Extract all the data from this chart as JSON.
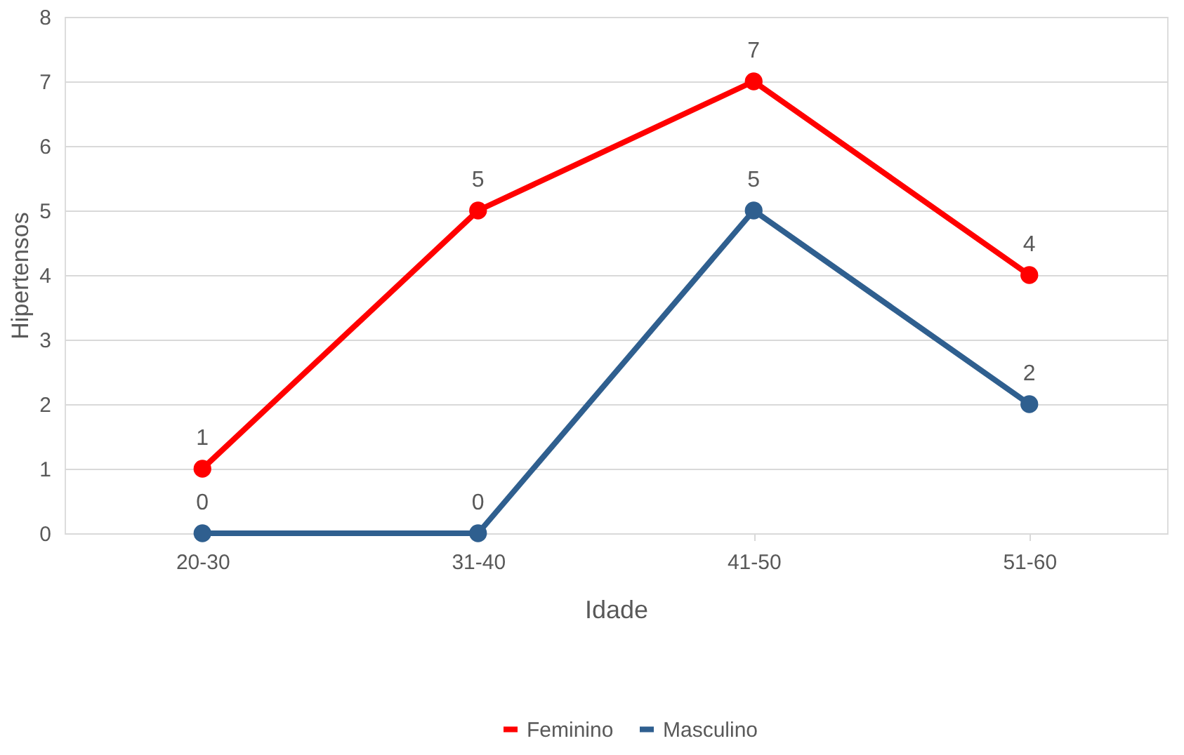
{
  "chart_data": {
    "type": "line",
    "xlabel": "Idade",
    "ylabel": "Hipertensos",
    "categories": [
      "20-30",
      "31-40",
      "41-50",
      "51-60"
    ],
    "series": [
      {
        "name": "Feminino",
        "color": "#ff0000",
        "values": [
          1,
          5,
          7,
          4
        ]
      },
      {
        "name": "Masculino",
        "color": "#2f5f8f",
        "values": [
          0,
          0,
          5,
          2
        ]
      }
    ],
    "ylim": [
      0,
      8
    ],
    "yticks": [
      0,
      1,
      2,
      3,
      4,
      5,
      6,
      7,
      8
    ],
    "grid": "y",
    "legend": "bottom",
    "marker": "circle",
    "line_style": "solid",
    "data_labels": true
  }
}
